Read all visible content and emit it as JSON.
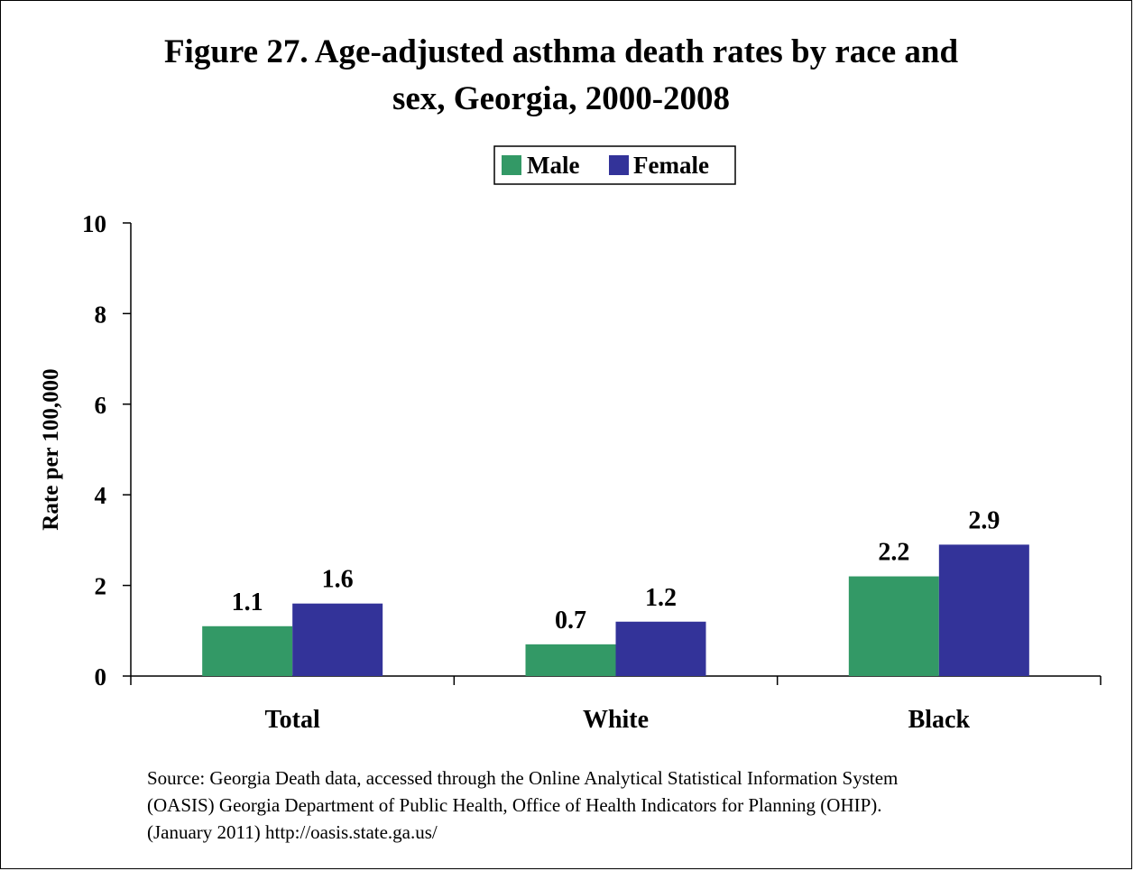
{
  "title_line1": "Figure 27. Age-adjusted asthma death rates by race and",
  "title_line2": "sex, Georgia, 2000-2008",
  "source_lines": [
    "Source:  Georgia Death data, accessed through the Online Analytical Statistical  Information System",
    "(OASIS) Georgia Department of Public Health, Office of Health Indicators for Planning (OHIP).",
    "(January 2011) http://oasis.state.ga.us/"
  ],
  "colors": {
    "male": "#339966",
    "female": "#333399"
  },
  "chart_data": {
    "type": "bar",
    "title": "Figure 27. Age-adjusted asthma death rates by race and sex, Georgia, 2000-2008",
    "categories": [
      "Total",
      "White",
      "Black"
    ],
    "series": [
      {
        "name": "Male",
        "values": [
          1.1,
          0.7,
          2.2
        ],
        "labels": [
          "1.1",
          "0.7",
          "2.2"
        ]
      },
      {
        "name": "Female",
        "values": [
          1.6,
          1.2,
          2.9
        ],
        "labels": [
          "1.6",
          "1.2",
          "2.9"
        ]
      }
    ],
    "xlabel": "",
    "ylabel": "Rate per 100,000",
    "ylim": [
      0,
      10
    ],
    "yticks": [
      0,
      2,
      4,
      6,
      8,
      10
    ],
    "legend_position": "top-center",
    "grid": false
  }
}
